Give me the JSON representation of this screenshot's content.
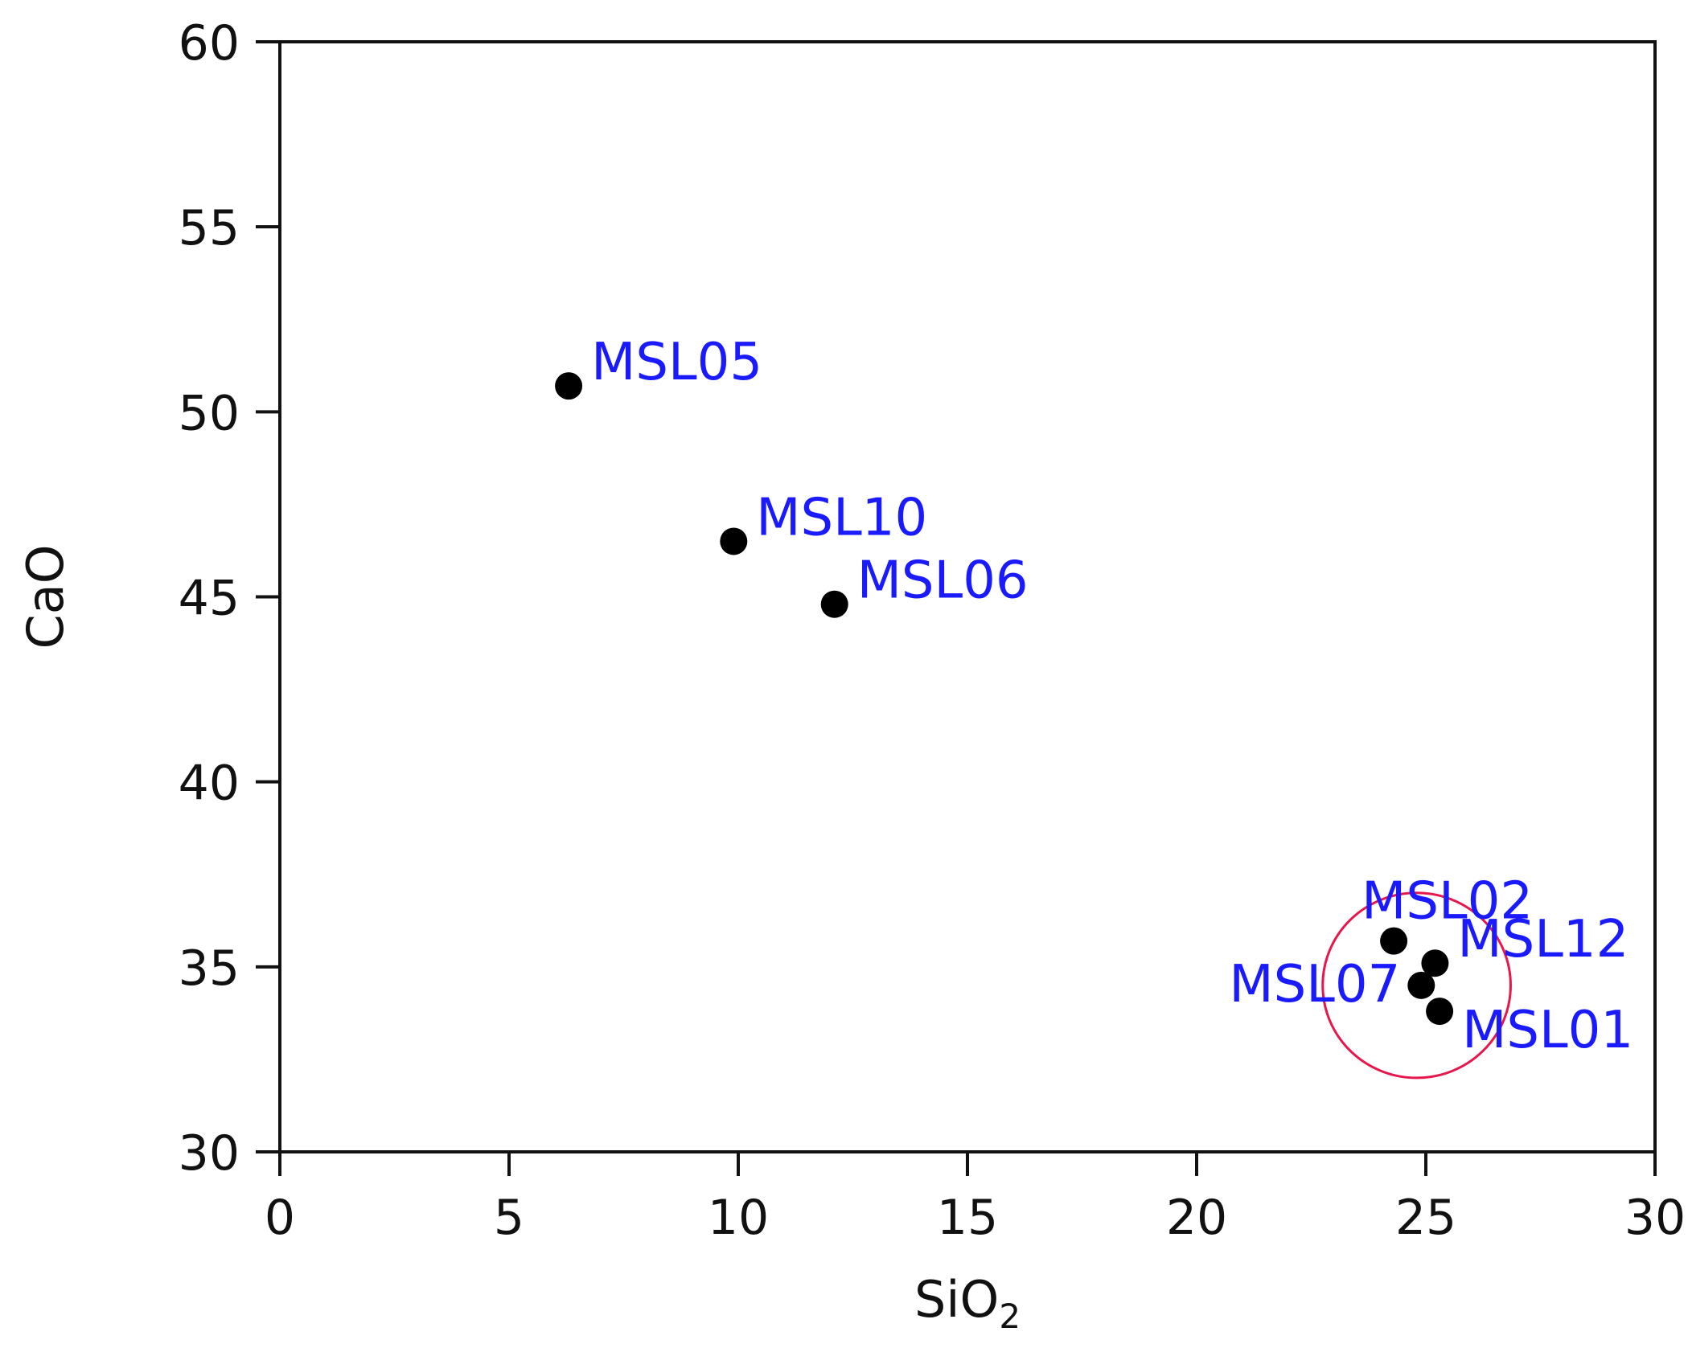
{
  "chart_data": {
    "type": "scatter",
    "title": "",
    "xlabel": "SiO",
    "xlabel_subscript": "2",
    "ylabel": "CaO",
    "xlim": [
      0,
      30
    ],
    "ylim": [
      30,
      60
    ],
    "xticks": [
      0,
      5,
      10,
      15,
      20,
      25,
      30
    ],
    "yticks": [
      30,
      35,
      40,
      45,
      50,
      55,
      60
    ],
    "grid": false,
    "legend": "none",
    "colors": {
      "point": "#000000",
      "label": "#1a1aff",
      "highlight": "#e8174b",
      "axis": "#111111"
    },
    "points": [
      {
        "label": "MSL05",
        "x": 6.3,
        "y": 50.7,
        "label_side": "right-top"
      },
      {
        "label": "MSL10",
        "x": 9.9,
        "y": 46.5,
        "label_side": "right-top"
      },
      {
        "label": "MSL06",
        "x": 12.1,
        "y": 44.8,
        "label_side": "right-top"
      },
      {
        "label": "MSL02",
        "x": 24.3,
        "y": 35.7,
        "label_side": "above"
      },
      {
        "label": "MSL12",
        "x": 25.2,
        "y": 35.1,
        "label_side": "right-top"
      },
      {
        "label": "MSL07",
        "x": 24.9,
        "y": 34.5,
        "label_side": "left"
      },
      {
        "label": "MSL01",
        "x": 25.3,
        "y": 33.8,
        "label_side": "right-bottom"
      }
    ],
    "highlight_circle": {
      "cx": 24.8,
      "cy": 34.5,
      "rx": 2.05,
      "ry": 2.5
    }
  }
}
